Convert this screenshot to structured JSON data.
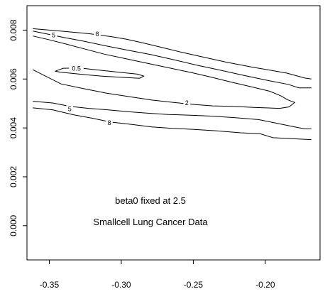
{
  "chart_data": {
    "type": "contour",
    "title": "",
    "xlabel": "",
    "ylabel": "",
    "xlim": [
      -0.3655,
      -0.162
    ],
    "ylim": [
      -0.0014,
      0.009
    ],
    "grid": false,
    "x_ticks": [
      {
        "value": -0.35,
        "label": "-0.35"
      },
      {
        "value": -0.3,
        "label": "-0.30"
      },
      {
        "value": -0.25,
        "label": "-0.25"
      },
      {
        "value": -0.2,
        "label": "-0.20"
      }
    ],
    "y_ticks": [
      {
        "value": 0.0,
        "label": "0.000"
      },
      {
        "value": 0.002,
        "label": "0.002"
      },
      {
        "value": 0.004,
        "label": "0.004"
      },
      {
        "value": 0.006,
        "label": "0.006"
      },
      {
        "value": 0.008,
        "label": "0.008"
      }
    ],
    "annotations": [
      {
        "text": "beta0 fixed at 2.5",
        "x": -0.2772,
        "y": 0.0013
      },
      {
        "text": "Smallcell Lung Cancer Data",
        "x": -0.2772,
        "y": 0.0003
      }
    ],
    "contours": [
      {
        "level_label": "8",
        "label_at": {
          "x": -0.3167,
          "y": 0.00785
        },
        "points": [
          [
            -0.3614,
            0.00806
          ],
          [
            -0.34,
            0.00795
          ],
          [
            -0.3233,
            0.00786
          ],
          [
            -0.3064,
            0.00773
          ],
          [
            -0.2963,
            0.00763
          ],
          [
            -0.2853,
            0.00748
          ],
          [
            -0.2724,
            0.0073
          ],
          [
            -0.2585,
            0.0071
          ],
          [
            -0.2434,
            0.0069
          ],
          [
            -0.2278,
            0.0067
          ],
          [
            -0.2085,
            0.00648
          ],
          [
            -0.1965,
            0.00636
          ],
          [
            -0.185,
            0.00624
          ],
          [
            -0.1726,
            0.00604
          ],
          [
            -0.168,
            0.006
          ]
        ]
      },
      {
        "level_label": "5",
        "label_at": {
          "x": -0.347,
          "y": 0.0078
        },
        "points": [
          [
            -0.3614,
            0.00796
          ],
          [
            -0.3497,
            0.00782
          ],
          [
            -0.34,
            0.0077
          ],
          [
            -0.327,
            0.00756
          ],
          [
            -0.311,
            0.00736
          ],
          [
            -0.2953,
            0.00718
          ],
          [
            -0.2797,
            0.007
          ],
          [
            -0.2614,
            0.00676
          ],
          [
            -0.2471,
            0.00656
          ],
          [
            -0.2311,
            0.00636
          ],
          [
            -0.2145,
            0.00614
          ],
          [
            -0.1983,
            0.00594
          ],
          [
            -0.1841,
            0.00578
          ],
          [
            -0.1767,
            0.00564
          ],
          [
            -0.168,
            0.00564
          ]
        ]
      },
      {
        "level_label": "2",
        "label_at": {
          "x": -0.2545,
          "y": 0.00502
        },
        "points": [
          [
            -0.3614,
            0.00776
          ],
          [
            -0.3497,
            0.0076
          ],
          [
            -0.3377,
            0.00742
          ],
          [
            -0.3248,
            0.00722
          ],
          [
            -0.3119,
            0.00702
          ],
          [
            -0.2976,
            0.00684
          ],
          [
            -0.2816,
            0.00664
          ],
          [
            -0.2655,
            0.00644
          ],
          [
            -0.2512,
            0.00626
          ],
          [
            -0.2379,
            0.00608
          ],
          [
            -0.2242,
            0.00588
          ],
          [
            -0.2081,
            0.00566
          ],
          [
            -0.1969,
            0.0055
          ],
          [
            -0.1887,
            0.0053
          ],
          [
            -0.1849,
            0.00516
          ],
          [
            -0.1796,
            0.00504
          ],
          [
            -0.1835,
            0.00486
          ],
          [
            -0.1901,
            0.0048
          ],
          [
            -0.2081,
            0.00484
          ],
          [
            -0.2228,
            0.00488
          ],
          [
            -0.2365,
            0.0049
          ],
          [
            -0.2494,
            0.00496
          ],
          [
            -0.2637,
            0.00504
          ],
          [
            -0.2788,
            0.00514
          ],
          [
            -0.2944,
            0.00528
          ],
          [
            -0.3101,
            0.00542
          ],
          [
            -0.3257,
            0.0056
          ],
          [
            -0.3418,
            0.0058
          ],
          [
            -0.3614,
            0.00638
          ]
        ]
      },
      {
        "level_label": "0.5",
        "label_at": {
          "x": -0.3312,
          "y": 0.00644
        },
        "points": [
          [
            -0.346,
            0.00632
          ],
          [
            -0.3403,
            0.00644
          ],
          [
            -0.3285,
            0.00645
          ],
          [
            -0.3165,
            0.00637
          ],
          [
            -0.302,
            0.00628
          ],
          [
            -0.2888,
            0.0062
          ],
          [
            -0.2844,
            0.00612
          ],
          [
            -0.2872,
            0.00603
          ],
          [
            -0.2999,
            0.00607
          ],
          [
            -0.3142,
            0.00612
          ],
          [
            -0.3289,
            0.0062
          ],
          [
            -0.3424,
            0.00628
          ],
          [
            -0.346,
            0.00632
          ]
        ]
      },
      {
        "level_label": "5",
        "label_at": {
          "x": -0.3358,
          "y": 0.00478
        },
        "points": [
          [
            -0.3614,
            0.00509
          ],
          [
            -0.3477,
            0.00502
          ],
          [
            -0.3358,
            0.00488
          ],
          [
            -0.3227,
            0.0048
          ],
          [
            -0.3096,
            0.00474
          ],
          [
            -0.2949,
            0.00466
          ],
          [
            -0.2807,
            0.0046
          ],
          [
            -0.2674,
            0.00455
          ],
          [
            -0.2519,
            0.00452
          ],
          [
            -0.2361,
            0.00448
          ],
          [
            -0.2208,
            0.00442
          ],
          [
            -0.2048,
            0.00434
          ],
          [
            -0.1928,
            0.0042
          ],
          [
            -0.1795,
            0.00404
          ],
          [
            -0.1726,
            0.00396
          ],
          [
            -0.168,
            0.00396
          ]
        ]
      },
      {
        "level_label": "8",
        "label_at": {
          "x": -0.3083,
          "y": 0.00421
        },
        "points": [
          [
            -0.3614,
            0.00482
          ],
          [
            -0.3477,
            0.00474
          ],
          [
            -0.3335,
            0.00454
          ],
          [
            -0.3206,
            0.0044
          ],
          [
            -0.3074,
            0.00424
          ],
          [
            -0.2926,
            0.00414
          ],
          [
            -0.2788,
            0.00404
          ],
          [
            -0.2646,
            0.00398
          ],
          [
            -0.2494,
            0.00394
          ],
          [
            -0.2338,
            0.00388
          ],
          [
            -0.2172,
            0.0038
          ],
          [
            -0.2035,
            0.00376
          ],
          [
            -0.1947,
            0.0036
          ],
          [
            -0.1818,
            0.00356
          ],
          [
            -0.168,
            0.00352
          ]
        ]
      }
    ]
  }
}
